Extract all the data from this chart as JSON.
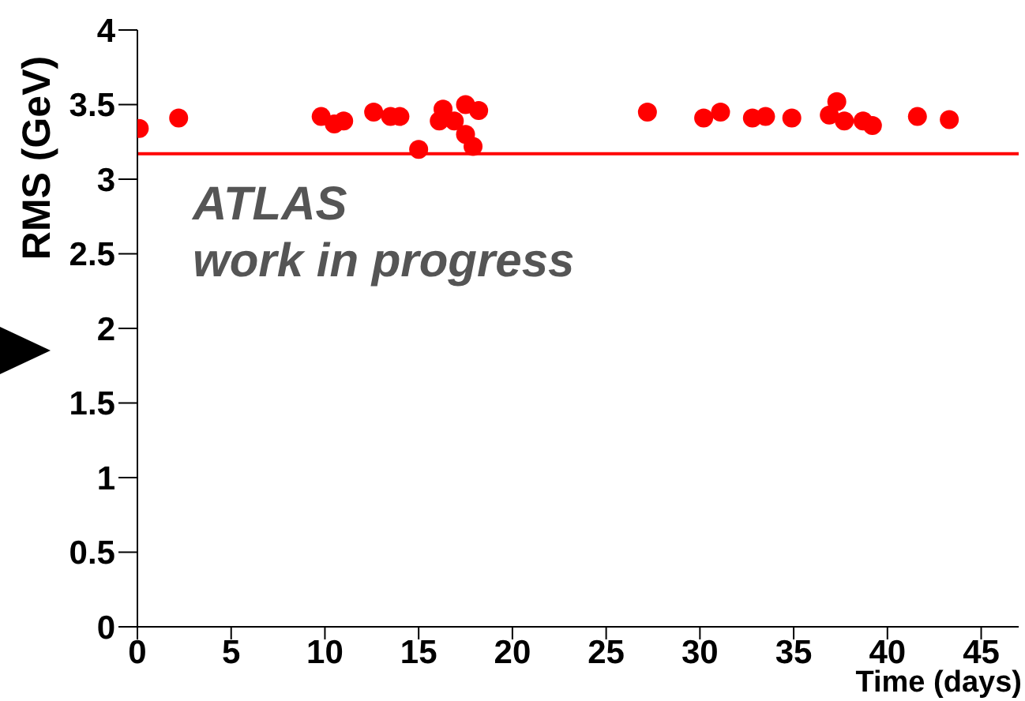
{
  "chart_data": {
    "type": "scatter",
    "xlabel": "Time (days)",
    "ylabel": "RMS (GeV)",
    "annotations": [
      "ATLAS",
      "work in progress"
    ],
    "x": [
      0.1,
      2.2,
      9.8,
      10.5,
      11.0,
      12.6,
      13.5,
      14.0,
      15.0,
      16.1,
      16.3,
      16.9,
      17.5,
      17.5,
      18.2,
      17.9,
      27.2,
      30.2,
      31.1,
      32.8,
      33.5,
      34.9,
      36.9,
      37.3,
      37.7,
      38.7,
      39.2,
      41.6,
      43.3
    ],
    "series": [
      {
        "color": "#ff0000",
        "values": [
          3.34,
          3.41,
          3.42,
          3.37,
          3.39,
          3.45,
          3.42,
          3.42,
          3.2,
          3.39,
          3.47,
          3.39,
          3.3,
          3.5,
          3.46,
          3.22,
          3.45,
          3.41,
          3.45,
          3.41,
          3.42,
          3.41,
          3.43,
          3.52,
          3.39,
          3.39,
          3.36,
          3.42,
          3.4
        ]
      }
    ],
    "marker": "circle",
    "xlim": [
      0,
      47
    ],
    "xticks": [
      0,
      5,
      10,
      15,
      20,
      25,
      30,
      35,
      40,
      45
    ],
    "ylim": [
      0,
      4
    ],
    "yticks": [
      0,
      0.5,
      1,
      1.5,
      2,
      2.5,
      3,
      3.5,
      4
    ],
    "ref_lines": [
      {
        "axis": "y",
        "value": 3.17,
        "color": "#ff0000"
      }
    ],
    "grid": false,
    "legend": false
  }
}
